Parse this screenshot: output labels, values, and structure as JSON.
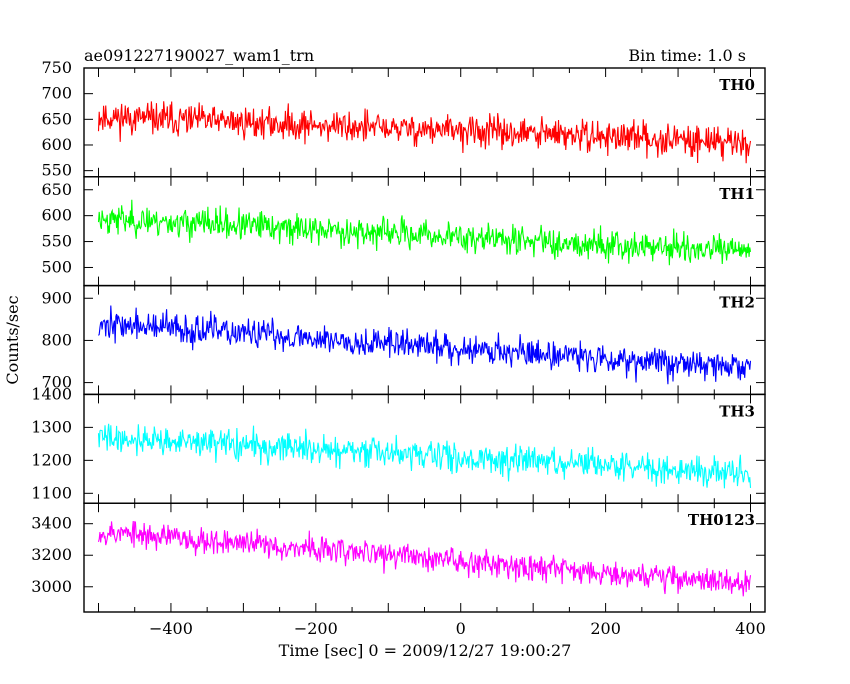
{
  "header": {
    "title": "ae091227190027_wam1_trn",
    "bin_time": "Bin time: 1.0 s"
  },
  "chart_data": {
    "type": "line",
    "xlabel": "Time [sec] 0 = 2009/12/27 19:00:27",
    "ylabel": "Counts/sec",
    "xlim": [
      -520,
      420
    ],
    "x_ticks": [
      -400,
      -200,
      0,
      200,
      400
    ],
    "x_data_range": [
      -500,
      400
    ],
    "panels": [
      {
        "name": "TH0",
        "color": "#ff0000",
        "ylim": [
          538,
          750
        ],
        "y_ticks": [
          550,
          600,
          650,
          700,
          750
        ],
        "trend_start": 655,
        "trend_end": 605,
        "noise": 28,
        "seed": 11
      },
      {
        "name": "TH1",
        "color": "#00ff00",
        "ylim": [
          465,
          675
        ],
        "y_ticks": [
          500,
          550,
          600,
          650
        ],
        "trend_start": 595,
        "trend_end": 530,
        "noise": 26,
        "seed": 23
      },
      {
        "name": "TH2",
        "color": "#0000ff",
        "ylim": [
          672,
          930
        ],
        "y_ticks": [
          700,
          800,
          900
        ],
        "trend_start": 840,
        "trend_end": 735,
        "noise": 32,
        "seed": 37
      },
      {
        "name": "TH3",
        "color": "#00ffff",
        "ylim": [
          1070,
          1400
        ],
        "y_ticks": [
          1100,
          1200,
          1300,
          1400
        ],
        "trend_start": 1270,
        "trend_end": 1160,
        "noise": 40,
        "seed": 41
      },
      {
        "name": "TH0123",
        "color": "#ff00ff",
        "ylim": [
          2840,
          3530
        ],
        "y_ticks": [
          3000,
          3200,
          3400
        ],
        "trend_start": 3350,
        "trend_end": 3020,
        "noise": 75,
        "seed": 53
      }
    ]
  }
}
